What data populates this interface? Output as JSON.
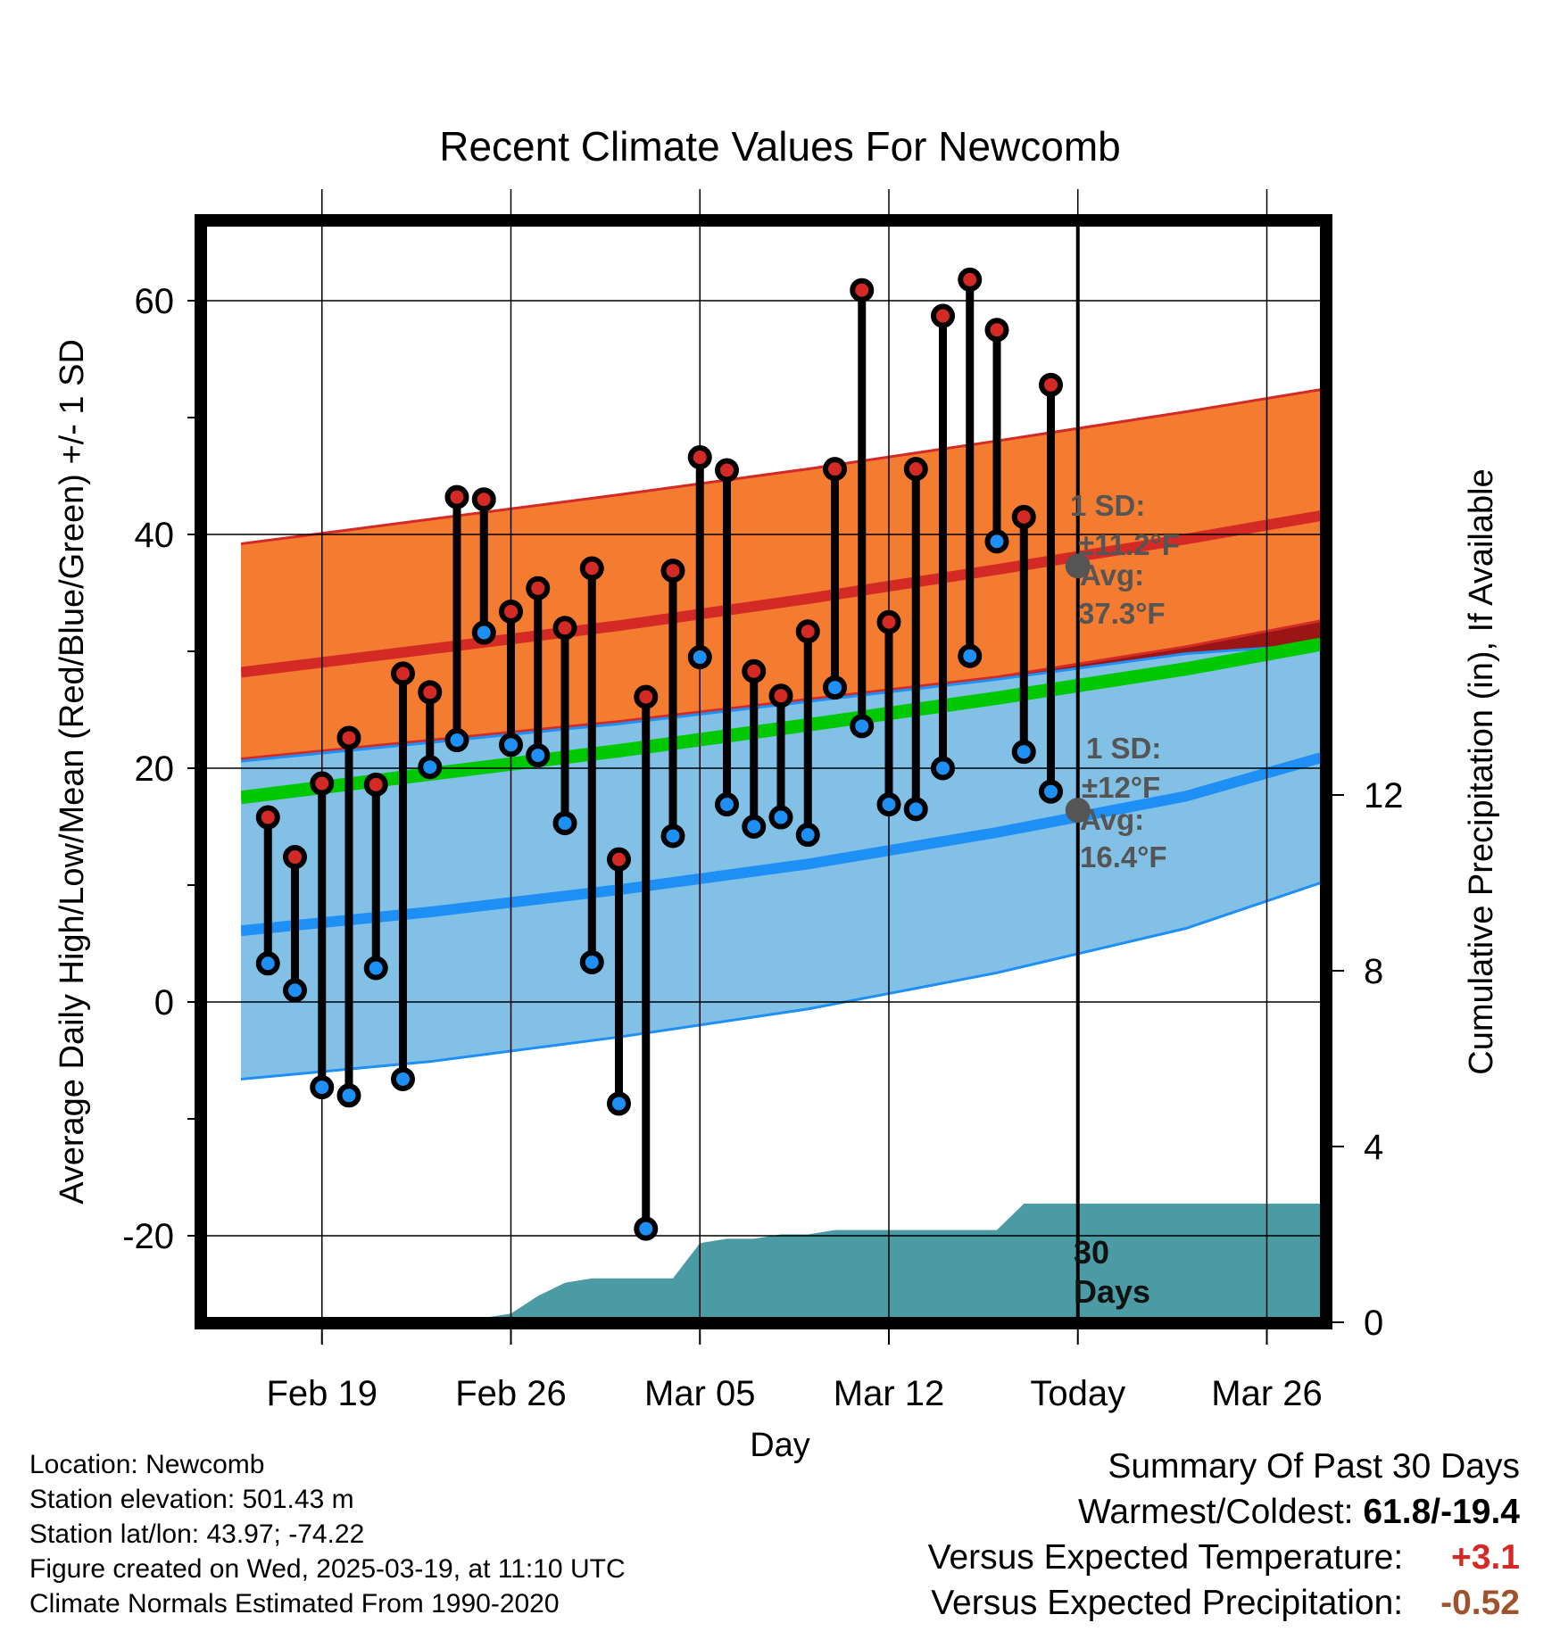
{
  "chart_data": {
    "type": "line",
    "title": "Recent Climate Values For Newcomb",
    "xlabel": "Day",
    "ylabel": "Average Daily High/Low/Mean (Red/Blue/Green) +/- 1 SD",
    "y2label": "Cumulative Precipitation (in), If Available",
    "x_tick_labels": [
      "Feb 19",
      "Feb 26",
      "Mar 05",
      "Mar 12",
      "Today",
      "Mar 26"
    ],
    "x_ticks": [
      "2025-02-19",
      "2025-02-26",
      "2025-03-05",
      "2025-03-12",
      "2025-03-19",
      "2025-03-26"
    ],
    "xlim": [
      "2025-02-16",
      "2025-03-28"
    ],
    "ylim": [
      -27,
      67
    ],
    "y_ticks": [
      60,
      40,
      20,
      0,
      -20
    ],
    "y2lim": [
      0,
      25
    ],
    "y2_ticks": [
      12,
      8,
      4,
      0
    ],
    "grid": true,
    "today": "2025-03-19",
    "normals": {
      "dates": [
        "2025-02-16",
        "2025-02-23",
        "2025-03-02",
        "2025-03-09",
        "2025-03-16",
        "2025-03-23",
        "2025-03-28"
      ],
      "high_avg": [
        28.2,
        30.2,
        32.2,
        34.5,
        37.0,
        39.6,
        41.6
      ],
      "high_sd_upper": [
        39.2,
        41.3,
        43.4,
        45.6,
        48.0,
        50.5,
        52.4
      ],
      "high_sd_lower": [
        20.8,
        22.4,
        24.0,
        25.9,
        27.8,
        30.4,
        32.6
      ],
      "low_avg": [
        6.1,
        7.7,
        9.6,
        11.8,
        14.5,
        17.6,
        20.9
      ],
      "low_sd_upper": [
        20.6,
        22.2,
        23.8,
        25.7,
        27.6,
        29.8,
        30.6
      ],
      "low_sd_lower": [
        -6.6,
        -5.1,
        -3.0,
        -0.6,
        2.5,
        6.3,
        10.2
      ],
      "mean_avg": [
        17.5,
        19.5,
        21.5,
        23.7,
        26.0,
        28.5,
        30.6
      ]
    },
    "annotations": {
      "high": {
        "sd_label": "1 SD:",
        "sd_value": "±11.2°F",
        "avg_label": "Avg:",
        "avg_value": "37.3°F",
        "avg": 37.3
      },
      "low": {
        "sd_label": "1 SD:",
        "sd_value": "±12°F",
        "avg_label": "Avg:",
        "avg_value": "16.4°F",
        "avg": 16.4
      },
      "days": [
        "30",
        "Days"
      ]
    },
    "series": [
      {
        "dates": [
          "2025-02-17",
          "2025-02-18",
          "2025-02-19",
          "2025-02-20",
          "2025-02-21",
          "2025-02-22",
          "2025-02-23",
          "2025-02-24",
          "2025-02-25",
          "2025-02-26",
          "2025-02-27",
          "2025-02-28",
          "2025-03-01",
          "2025-03-02",
          "2025-03-03",
          "2025-03-04",
          "2025-03-05",
          "2025-03-06",
          "2025-03-07",
          "2025-03-08",
          "2025-03-09",
          "2025-03-10",
          "2025-03-11",
          "2025-03-12",
          "2025-03-13",
          "2025-03-14",
          "2025-03-15",
          "2025-03-16",
          "2025-03-17",
          "2025-03-18"
        ],
        "high": [
          15.8,
          12.4,
          18.7,
          22.6,
          18.6,
          28.1,
          26.5,
          43.2,
          43.0,
          33.4,
          35.4,
          32.0,
          37.1,
          12.2,
          26.1,
          36.9,
          46.6,
          45.5,
          28.3,
          26.2,
          31.7,
          45.6,
          60.9,
          32.5,
          45.6,
          58.7,
          61.8,
          57.5,
          41.5,
          52.8
        ],
        "low": [
          3.3,
          1.0,
          -7.3,
          -8.0,
          2.9,
          -6.6,
          20.1,
          22.4,
          31.6,
          22.0,
          21.1,
          15.3,
          3.4,
          -8.7,
          -19.4,
          14.2,
          29.5,
          16.9,
          15.0,
          15.8,
          14.3,
          26.9,
          23.6,
          16.9,
          16.5,
          20.0,
          29.6,
          39.4,
          21.4,
          18.0
        ]
      }
    ],
    "precip": {
      "dates": [
        "2025-02-16",
        "2025-02-24",
        "2025-02-26",
        "2025-02-27",
        "2025-02-28",
        "2025-03-01",
        "2025-03-02",
        "2025-03-03",
        "2025-03-04",
        "2025-03-05",
        "2025-03-06",
        "2025-03-07",
        "2025-03-08",
        "2025-03-09",
        "2025-03-10",
        "2025-03-11",
        "2025-03-12",
        "2025-03-13",
        "2025-03-14",
        "2025-03-15",
        "2025-03-16",
        "2025-03-17",
        "2025-03-18",
        "2025-03-19",
        "2025-03-28"
      ],
      "cumulative": [
        0,
        0,
        0.2,
        0.6,
        0.9,
        1.0,
        1.0,
        1.0,
        1.0,
        1.8,
        1.9,
        1.9,
        2.0,
        2.0,
        2.1,
        2.1,
        2.1,
        2.1,
        2.1,
        2.1,
        2.1,
        2.7,
        2.7,
        2.7,
        2.7
      ]
    },
    "colors": {
      "high_band": "#f47c30",
      "high_line": "#d42a26",
      "low_band": "#82c0e6",
      "low_line": "#1e8ff5",
      "overlap_band": "#9a1516",
      "mean_line": "#00c800",
      "precip": "#4a9ba3",
      "high_marker": "#d42a26",
      "low_marker": "#1e8ff5",
      "today_marker": "#555555"
    }
  },
  "info": {
    "location": "Location: Newcomb",
    "elevation": "Station elevation: 501.43 m",
    "latlon": "Station lat/lon: 43.97; -74.22",
    "created": "Figure created on Wed, 2025-03-19, at 11:10 UTC",
    "normals": "Climate Normals Estimated From 1990-2020"
  },
  "summary": {
    "title": "Summary Of Past 30 Days",
    "warm_cold_label": "Warmest/Coldest:",
    "warm_cold_value": "61.8/-19.4",
    "temp_label": "Versus Expected Temperature:",
    "temp_value": "+3.1",
    "temp_color": "#d42a26",
    "precip_label": "Versus Expected Precipitation:",
    "precip_value": "-0.52",
    "precip_color": "#a0522d"
  }
}
